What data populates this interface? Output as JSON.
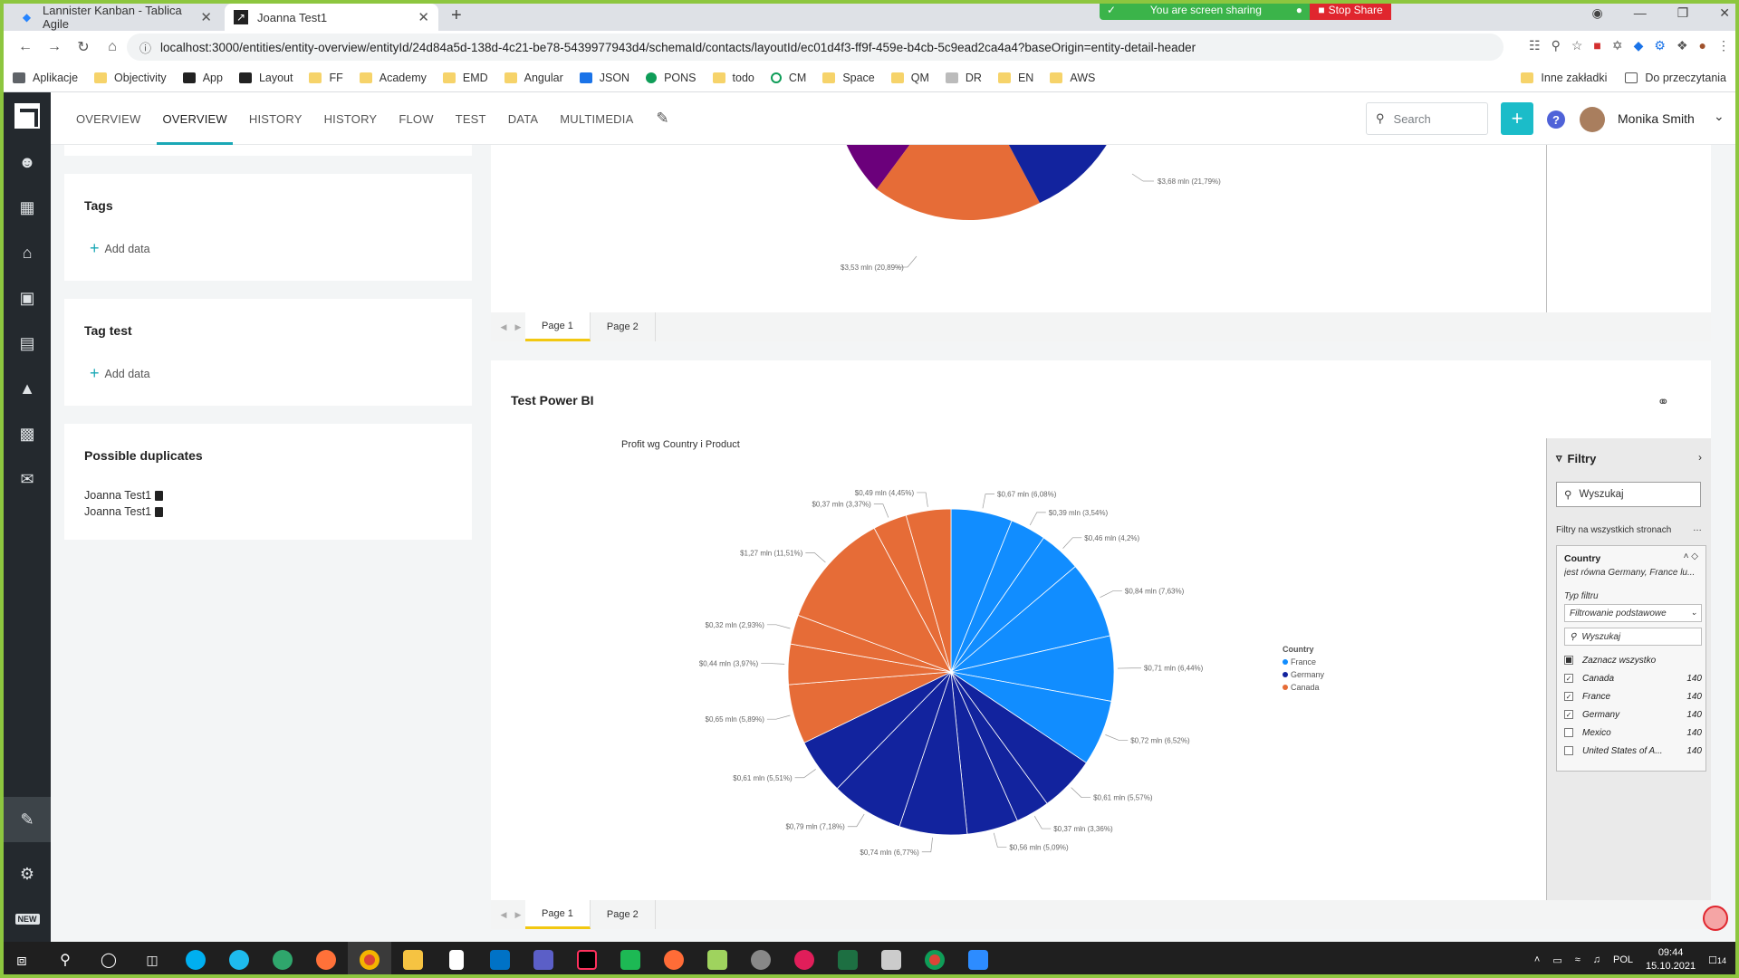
{
  "browser": {
    "tabs": [
      {
        "title": "Lannister Kanban - Tablica Agile",
        "active": false
      },
      {
        "title": "Joanna Test1",
        "active": true
      }
    ],
    "url": "localhost:3000/entities/entity-overview/entityId/24d84a5d-138d-4c21-be78-5439977943d4/schemaId/contacts/layoutId/ec01d4f3-ff9f-459e-b4cb-5c9ead2ca4a4?baseOrigin=entity-detail-header",
    "screen_share": {
      "message": "You are screen sharing",
      "stop_label": "Stop Share"
    },
    "bookmarks": [
      "Aplikacje",
      "Objectivity",
      "App",
      "Layout",
      "FF",
      "Academy",
      "EMD",
      "Angular",
      "JSON",
      "PONS",
      "todo",
      "CM",
      "Space",
      "QM",
      "DR",
      "EN",
      "AWS"
    ],
    "bookmarks_right": [
      "Inne zakładki",
      "Do przeczytania"
    ]
  },
  "app": {
    "nav_tabs": [
      "OVERVIEW",
      "OVERVIEW",
      "HISTORY",
      "HISTORY",
      "FLOW",
      "TEST",
      "DATA",
      "MULTIMEDIA"
    ],
    "active_tab_index": 1,
    "search_placeholder": "Search",
    "user_name": "Monika Smith"
  },
  "cards": {
    "tags": {
      "title": "Tags",
      "add_label": "Add data"
    },
    "tag_test": {
      "title": "Tag test",
      "add_label": "Add data"
    },
    "duplicates": {
      "title": "Possible duplicates",
      "items": [
        "Joanna Test1",
        "Joanna Test1"
      ]
    }
  },
  "top_report": {
    "labels": [
      "$3,68 mln (21,79%)",
      "$3,53 mln (20,89%)"
    ],
    "pages": [
      "Page 1",
      "Page 2"
    ]
  },
  "power_bi": {
    "title": "Test Power BI",
    "pages": [
      "Page 1",
      "Page 2"
    ],
    "filters": {
      "title": "Filtry",
      "search_placeholder": "Wyszukaj",
      "all_pages_label": "Filtry na wszystkich stronach",
      "field": "Country",
      "description": "jest równa Germany, France lu...",
      "type_label": "Typ filtru",
      "type_value": "Filtrowanie podstawowe",
      "inner_search": "Wyszukaj",
      "select_all": "Zaznacz wszystko",
      "options": [
        {
          "name": "Canada",
          "count": "140",
          "checked": true
        },
        {
          "name": "France",
          "count": "140",
          "checked": true
        },
        {
          "name": "Germany",
          "count": "140",
          "checked": true
        },
        {
          "name": "Mexico",
          "count": "140",
          "checked": false
        },
        {
          "name": "United States of A...",
          "count": "140",
          "checked": false
        }
      ]
    }
  },
  "chart_data": {
    "type": "pie",
    "title": "Profit wg Country i Product",
    "legend_title": "Country",
    "legend_position": "right",
    "series_colors": {
      "France": "#118dff",
      "Germany": "#12239e",
      "Canada": "#e66c37"
    },
    "slices": [
      {
        "country": "France",
        "value": 0.67,
        "label": "$0,67 mln (6,08%)"
      },
      {
        "country": "France",
        "value": 0.39,
        "label": "$0,39 mln (3,54%)"
      },
      {
        "country": "France",
        "value": 0.46,
        "label": "$0,46 mln (4,2%)"
      },
      {
        "country": "France",
        "value": 0.84,
        "label": "$0,84 mln (7,63%)"
      },
      {
        "country": "France",
        "value": 0.71,
        "label": "$0,71 mln (6,44%)"
      },
      {
        "country": "France",
        "value": 0.72,
        "label": "$0,72 mln (6,52%)"
      },
      {
        "country": "Germany",
        "value": 0.61,
        "label": "$0,61 mln (5,57%)"
      },
      {
        "country": "Germany",
        "value": 0.37,
        "label": "$0,37 mln (3,36%)"
      },
      {
        "country": "Germany",
        "value": 0.56,
        "label": "$0,56 mln (5,09%)"
      },
      {
        "country": "Germany",
        "value": 0.74,
        "label": "$0,74 mln (6,77%)"
      },
      {
        "country": "Germany",
        "value": 0.79,
        "label": "$0,79 mln (7,18%)"
      },
      {
        "country": "Germany",
        "value": 0.61,
        "label": "$0,61 mln (5,51%)"
      },
      {
        "country": "Canada",
        "value": 0.65,
        "label": "$0,65 mln (5,89%)"
      },
      {
        "country": "Canada",
        "value": 0.44,
        "label": "$0,44 mln (3,97%)"
      },
      {
        "country": "Canada",
        "value": 0.32,
        "label": "$0,32 mln (2,93%)"
      },
      {
        "country": "Canada",
        "value": 1.27,
        "label": "$1,27 mln (11,51%)"
      },
      {
        "country": "Canada",
        "value": 0.37,
        "label": "$0,37 mln (3,37%)"
      },
      {
        "country": "Canada",
        "value": 0.49,
        "label": "$0,49 mln (4,45%)"
      }
    ]
  },
  "taskbar": {
    "lang": "POL",
    "time": "09:44",
    "date": "15.10.2021",
    "notifications": "14"
  }
}
